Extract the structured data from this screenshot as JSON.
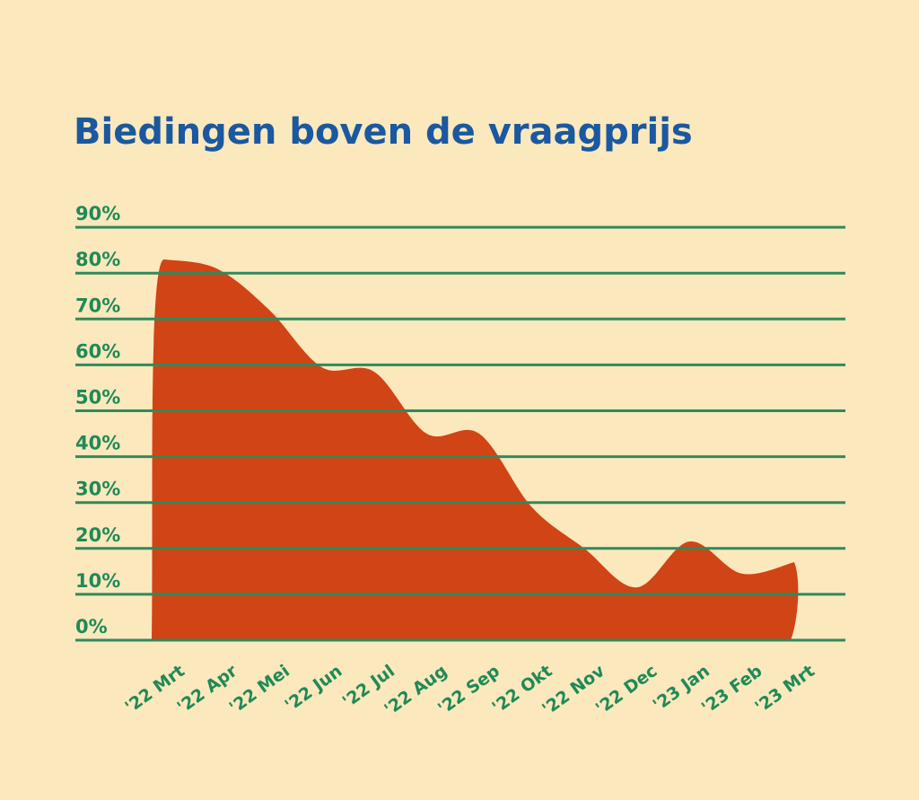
{
  "chart_data": {
    "type": "area",
    "title": "Biedingen boven de vraagprijs",
    "xlabel": "",
    "ylabel": "",
    "categories": [
      "'22 Mrt",
      "'22 Apr",
      "'22 Mei",
      "'22 Jun",
      "'22 Jul",
      "'22 Aug",
      "'22 Sep",
      "'22 Okt",
      "'22 Nov",
      "'22 Dec",
      "'23 Jan",
      "'23 Feb",
      "'23 Mrt"
    ],
    "y_ticks": [
      "0%",
      "10%",
      "20%",
      "30%",
      "40%",
      "50%",
      "60%",
      "70%",
      "80%",
      "90%"
    ],
    "values": [
      83,
      81,
      72,
      59.5,
      58.5,
      45,
      45,
      29,
      20,
      11.5,
      21.5,
      14.5,
      17
    ],
    "ylim": [
      0,
      90
    ],
    "grid": true,
    "legend": "none",
    "colors": {
      "background": "#fce8bd",
      "area": "#d14415",
      "grid": "#2f8a5a",
      "tick_text": "#1f8a57",
      "title": "#1a58a0"
    }
  }
}
